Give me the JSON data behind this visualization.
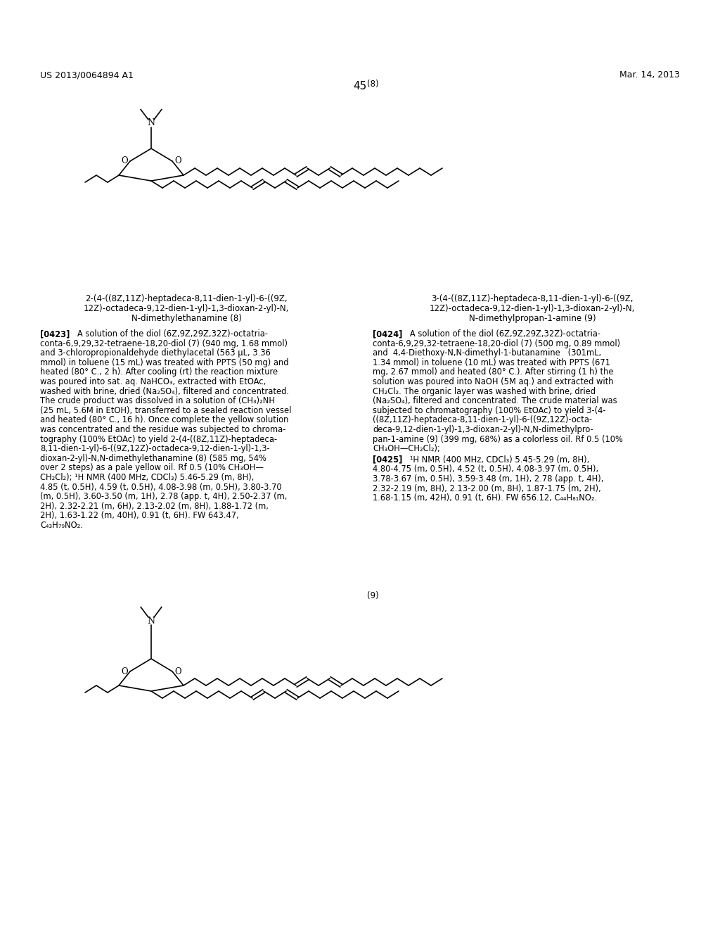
{
  "header_left": "US 2013/0064894 A1",
  "header_right": "Mar. 14, 2013",
  "page_number": "45",
  "compound_label_8": "(8)",
  "compound_label_9": "(9)",
  "compound_name_8_line1": "2-(4-((8Z,11Z)-heptadeca-8,11-dien-1-yl)-6-((9Z,",
  "compound_name_8_line2": "12Z)-octadeca-9,12-dien-1-yl)-1,3-dioxan-2-yl)-N,",
  "compound_name_8_line3": "N-dimethylethanamine (8)",
  "compound_name_9_line1": "3-(4-((8Z,11Z)-heptadeca-8,11-dien-1-yl)-6-((9Z,",
  "compound_name_9_line2": "12Z)-octadeca-9,12-dien-1-yl)-1,3-dioxan-2-yl)-N,",
  "compound_name_9_line3": "N-dimethylpropan-1-amine (9)",
  "para_0423_lines": [
    "[0423]   A solution of the diol (6Z,9Z,29Z,32Z)-octatria-",
    "conta-6,9,29,32-tetraene-18,20-diol (7) (940 mg, 1.68 mmol)",
    "and 3-chloropropionaldehyde diethylacetal (563 μL, 3.36",
    "mmol) in toluene (15 mL) was treated with PPTS (50 mg) and",
    "heated (80° C., 2 h). After cooling (rt) the reaction mixture",
    "was poured into sat. aq. NaHCO₃, extracted with EtOAc,",
    "washed with brine, dried (Na₂SO₄), filtered and concentrated.",
    "The crude product was dissolved in a solution of (CH₃)₂NH",
    "(25 mL, 5.6M in EtOH), transferred to a sealed reaction vessel",
    "and heated (80° C., 16 h). Once complete the yellow solution",
    "was concentrated and the residue was subjected to chroma-",
    "tography (100% EtOAc) to yield 2-(4-((8Z,11Z)-heptadeca-",
    "8,11-dien-1-yl)-6-((9Z,12Z)-octadeca-9,12-dien-1-yl)-1,3-",
    "dioxan-2-yl)-N,N-dimethylethanamine (8) (585 mg, 54%",
    "over 2 steps) as a pale yellow oil. Rf 0.5 (10% CH₃OH—",
    "CH₂Cl₂); ¹H NMR (400 MHz, CDCl₃) 5.46-5.29 (m, 8H),",
    "4.85 (t, 0.5H), 4.59 (t, 0.5H), 4.08-3.98 (m, 0.5H), 3.80-3.70",
    "(m, 0.5H), 3.60-3.50 (m, 1H), 2.78 (app. t, 4H), 2.50-2.37 (m,",
    "2H), 2.32-2.21 (m, 6H), 2.13-2.02 (m, 8H), 1.88-1.72 (m,",
    "2H), 1.63-1.22 (m, 40H), 0.91 (t, 6H). FW 643.47,",
    "C₄₃H₇₉NO₂."
  ],
  "para_0424_lines": [
    "[0424]   A solution of the diol (6Z,9Z,29Z,32Z)-octatria-",
    "conta-6,9,29,32-tetraene-18,20-diol (7) (500 mg, 0.89 mmol)",
    "and  4,4-Diethoxy-N,N-dimethyl-1-butanamine   (301mL,",
    "1.34 mmol) in toluene (10 mL) was treated with PPTS (671",
    "mg, 2.67 mmol) and heated (80° C.). After stirring (1 h) the",
    "solution was poured into NaOH (5M aq.) and extracted with",
    "CH₂Cl₂. The organic layer was washed with brine, dried",
    "(Na₂SO₄), filtered and concentrated. The crude material was",
    "subjected to chromatography (100% EtOAc) to yield 3-(4-",
    "((8Z,11Z)-heptadeca-8,11-dien-1-yl)-6-((9Z,12Z)-octa-",
    "deca-9,12-dien-1-yl)-1,3-dioxan-2-yl)-N,N-dimethylpro-",
    "pan-1-amine (9) (399 mg, 68%) as a colorless oil. Rf 0.5 (10%",
    "CH₃OH—CH₂Cl₂);"
  ],
  "para_0425_lines": [
    "[0425]   ¹H NMR (400 MHz, CDCl₃) 5.45-5.29 (m, 8H),",
    "4.80-4.75 (m, 0.5H), 4.52 (t, 0.5H), 4.08-3.97 (m, 0.5H),",
    "3.78-3.67 (m, 0.5H), 3.59-3.48 (m, 1H), 2.78 (app. t, 4H),",
    "2.32-2.19 (m, 8H), 2.13-2.00 (m, 8H), 1.87-1.75 (m, 2H),",
    "1.68-1.15 (m, 42H), 0.91 (t, 6H). FW 656.12, C₄₄H₈₁NO₂."
  ],
  "bg_color": "#ffffff",
  "text_color": "#000000"
}
